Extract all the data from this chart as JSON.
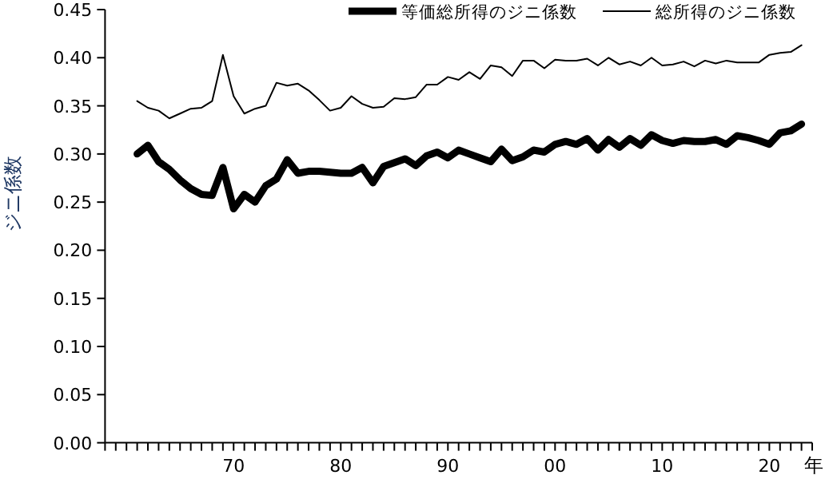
{
  "chart_data": {
    "type": "line",
    "ylabel": "ジニ係数",
    "xlabel": "年",
    "x": [
      1961,
      1962,
      1963,
      1964,
      1965,
      1966,
      1967,
      1968,
      1969,
      1970,
      1971,
      1972,
      1973,
      1974,
      1975,
      1976,
      1977,
      1978,
      1979,
      1980,
      1981,
      1982,
      1983,
      1984,
      1985,
      1986,
      1987,
      1988,
      1989,
      1990,
      1991,
      1992,
      1993,
      1994,
      1995,
      1996,
      1997,
      1998,
      1999,
      2000,
      2001,
      2002,
      2003,
      2004,
      2005,
      2006,
      2007,
      2008,
      2009,
      2010,
      2011,
      2012,
      2013,
      2014,
      2015,
      2016,
      2017,
      2018,
      2019,
      2020,
      2021,
      2022,
      2023
    ],
    "series": [
      {
        "name": "等価総所得のジニ係数",
        "color": "#000000",
        "values": [
          0.3,
          0.309,
          0.292,
          0.284,
          0.273,
          0.264,
          0.258,
          0.257,
          0.286,
          0.243,
          0.258,
          0.25,
          0.267,
          0.274,
          0.294,
          0.28,
          0.282,
          0.282,
          0.281,
          0.28,
          0.28,
          0.286,
          0.27,
          0.287,
          0.291,
          0.295,
          0.288,
          0.298,
          0.302,
          0.296,
          0.304,
          0.3,
          0.296,
          0.292,
          0.305,
          0.293,
          0.297,
          0.304,
          0.302,
          0.31,
          0.313,
          0.31,
          0.316,
          0.304,
          0.315,
          0.307,
          0.316,
          0.309,
          0.32,
          0.314,
          0.311,
          0.314,
          0.313,
          0.313,
          0.315,
          0.31,
          0.319,
          0.317,
          0.314,
          0.31,
          0.322,
          0.324,
          0.331
        ]
      },
      {
        "name": "総所得のジニ係数",
        "color": "#000000",
        "values": [
          0.355,
          0.348,
          0.345,
          0.337,
          0.342,
          0.347,
          0.348,
          0.355,
          0.403,
          0.36,
          0.342,
          0.347,
          0.35,
          0.374,
          0.371,
          0.373,
          0.366,
          0.356,
          0.345,
          0.348,
          0.36,
          0.352,
          0.348,
          0.349,
          0.358,
          0.357,
          0.359,
          0.372,
          0.372,
          0.38,
          0.377,
          0.385,
          0.378,
          0.392,
          0.39,
          0.381,
          0.397,
          0.397,
          0.389,
          0.398,
          0.397,
          0.397,
          0.399,
          0.392,
          0.4,
          0.393,
          0.396,
          0.392,
          0.4,
          0.392,
          0.393,
          0.396,
          0.391,
          0.397,
          0.394,
          0.397,
          0.395,
          0.395,
          0.395,
          0.403,
          0.405,
          0.406,
          0.413
        ]
      }
    ],
    "xlim": [
      1958,
      2024
    ],
    "xticks": [
      {
        "value": 1958,
        "label": null
      },
      {
        "value": 1959,
        "label": null
      },
      {
        "value": 1960,
        "label": null
      },
      {
        "value": 1961,
        "label": null
      },
      {
        "value": 1962,
        "label": null
      },
      {
        "value": 1963,
        "label": null
      },
      {
        "value": 1964,
        "label": null
      },
      {
        "value": 1965,
        "label": null
      },
      {
        "value": 1966,
        "label": null
      },
      {
        "value": 1967,
        "label": null
      },
      {
        "value": 1968,
        "label": null
      },
      {
        "value": 1969,
        "label": null
      },
      {
        "value": 1970,
        "label": "70"
      },
      {
        "value": 1971,
        "label": null
      },
      {
        "value": 1972,
        "label": null
      },
      {
        "value": 1973,
        "label": null
      },
      {
        "value": 1974,
        "label": null
      },
      {
        "value": 1975,
        "label": null
      },
      {
        "value": 1976,
        "label": null
      },
      {
        "value": 1977,
        "label": null
      },
      {
        "value": 1978,
        "label": null
      },
      {
        "value": 1979,
        "label": null
      },
      {
        "value": 1980,
        "label": "80"
      },
      {
        "value": 1981,
        "label": null
      },
      {
        "value": 1982,
        "label": null
      },
      {
        "value": 1983,
        "label": null
      },
      {
        "value": 1984,
        "label": null
      },
      {
        "value": 1985,
        "label": null
      },
      {
        "value": 1986,
        "label": null
      },
      {
        "value": 1987,
        "label": null
      },
      {
        "value": 1988,
        "label": null
      },
      {
        "value": 1989,
        "label": null
      },
      {
        "value": 1990,
        "label": "90"
      },
      {
        "value": 1991,
        "label": null
      },
      {
        "value": 1992,
        "label": null
      },
      {
        "value": 1993,
        "label": null
      },
      {
        "value": 1994,
        "label": null
      },
      {
        "value": 1995,
        "label": null
      },
      {
        "value": 1996,
        "label": null
      },
      {
        "value": 1997,
        "label": null
      },
      {
        "value": 1998,
        "label": null
      },
      {
        "value": 1999,
        "label": null
      },
      {
        "value": 2000,
        "label": "00"
      },
      {
        "value": 2001,
        "label": null
      },
      {
        "value": 2002,
        "label": null
      },
      {
        "value": 2003,
        "label": null
      },
      {
        "value": 2004,
        "label": null
      },
      {
        "value": 2005,
        "label": null
      },
      {
        "value": 2006,
        "label": null
      },
      {
        "value": 2007,
        "label": null
      },
      {
        "value": 2008,
        "label": null
      },
      {
        "value": 2009,
        "label": null
      },
      {
        "value": 2010,
        "label": "10"
      },
      {
        "value": 2011,
        "label": null
      },
      {
        "value": 2012,
        "label": null
      },
      {
        "value": 2013,
        "label": null
      },
      {
        "value": 2014,
        "label": null
      },
      {
        "value": 2015,
        "label": null
      },
      {
        "value": 2016,
        "label": null
      },
      {
        "value": 2017,
        "label": null
      },
      {
        "value": 2018,
        "label": null
      },
      {
        "value": 2019,
        "label": null
      },
      {
        "value": 2020,
        "label": "20"
      },
      {
        "value": 2021,
        "label": null
      },
      {
        "value": 2022,
        "label": null
      },
      {
        "value": 2023,
        "label": null
      },
      {
        "value": 2024,
        "label": null
      }
    ],
    "ylim": [
      0,
      0.45
    ],
    "yticks": [
      {
        "value": 0,
        "label": "0.00"
      },
      {
        "value": 0.05,
        "label": "0.05"
      },
      {
        "value": 0.1,
        "label": "0.10"
      },
      {
        "value": 0.15,
        "label": "0.15"
      },
      {
        "value": 0.2,
        "label": "0.20"
      },
      {
        "value": 0.25,
        "label": "0.25"
      },
      {
        "value": 0.3,
        "label": "0.30"
      },
      {
        "value": 0.35,
        "label": "0.35"
      },
      {
        "value": 0.4,
        "label": "0.40"
      },
      {
        "value": 0.45,
        "label": "0.45"
      }
    ],
    "legend": "top",
    "grid": false,
    "marker": "none",
    "line_style": "solid"
  }
}
